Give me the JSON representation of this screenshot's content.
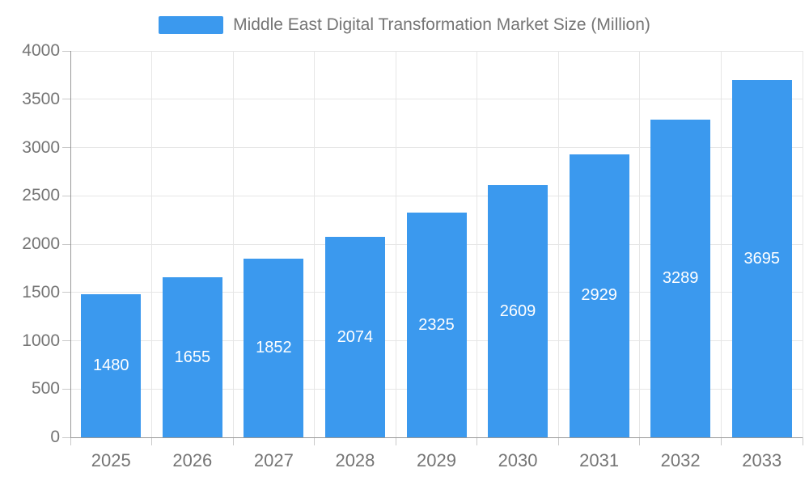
{
  "chart_data": {
    "type": "bar",
    "title": "Middle East Digital Transformation Market Size (Million)",
    "categories": [
      "2025",
      "2026",
      "2027",
      "2028",
      "2029",
      "2030",
      "2031",
      "2032",
      "2033"
    ],
    "values": [
      1480,
      1655,
      1852,
      2074,
      2325,
      2609,
      2929,
      3289,
      3695
    ],
    "series": [
      {
        "name": "Middle East Digital Transformation Market Size (Million)",
        "values": [
          1480,
          1655,
          1852,
          2074,
          2325,
          2609,
          2929,
          3289,
          3695
        ]
      }
    ],
    "xlabel": "",
    "ylabel": "",
    "ylim": [
      0,
      4000
    ],
    "yticks": [
      0,
      500,
      1000,
      1500,
      2000,
      2500,
      3000,
      3500,
      4000
    ],
    "grid": true,
    "legend_position": "top-center",
    "value_labels": "inside-center",
    "colors": {
      "bar": "#3B99EE",
      "bar_value_label": "#FFFFFF",
      "axis_line": "#999999",
      "grid_line": "#E6E6E6",
      "tick_mark": "#C9C9C9",
      "axis_label": "#757575",
      "legend_text": "#757575",
      "background": "#FFFFFF"
    }
  }
}
